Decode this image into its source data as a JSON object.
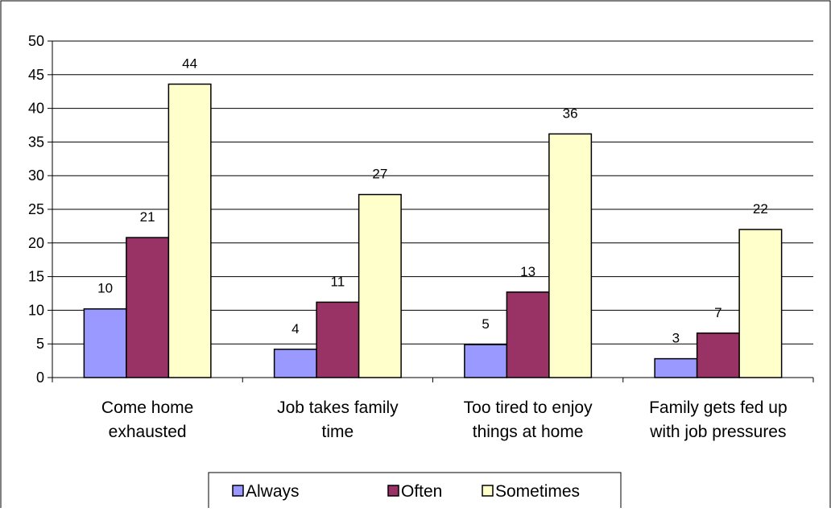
{
  "chart_data": {
    "type": "bar",
    "title": "",
    "xlabel": "",
    "ylabel": "",
    "categories": [
      [
        "Come home",
        "exhausted"
      ],
      [
        "Job takes family",
        "time"
      ],
      [
        "Too tired to enjoy",
        "things at home"
      ],
      [
        "Family gets fed up",
        "with job pressures"
      ]
    ],
    "series": [
      {
        "name": "Always",
        "values": [
          10.2,
          4.2,
          4.9,
          2.8
        ],
        "labels": [
          "10",
          "4",
          "5",
          "3"
        ],
        "color": "#9999ff"
      },
      {
        "name": "Often",
        "values": [
          20.8,
          11.2,
          12.7,
          6.6
        ],
        "labels": [
          "21",
          "11",
          "13",
          "7"
        ],
        "color": "#993366"
      },
      {
        "name": "Sometimes",
        "values": [
          43.6,
          27.2,
          36.2,
          22.0
        ],
        "labels": [
          "44",
          "27",
          "36",
          "22"
        ],
        "color": "#ffffcc"
      }
    ],
    "ylim": [
      0,
      50
    ],
    "yticks": [
      0,
      5,
      10,
      15,
      20,
      25,
      30,
      35,
      40,
      45,
      50
    ],
    "grid": true,
    "legend_position": "bottom"
  }
}
